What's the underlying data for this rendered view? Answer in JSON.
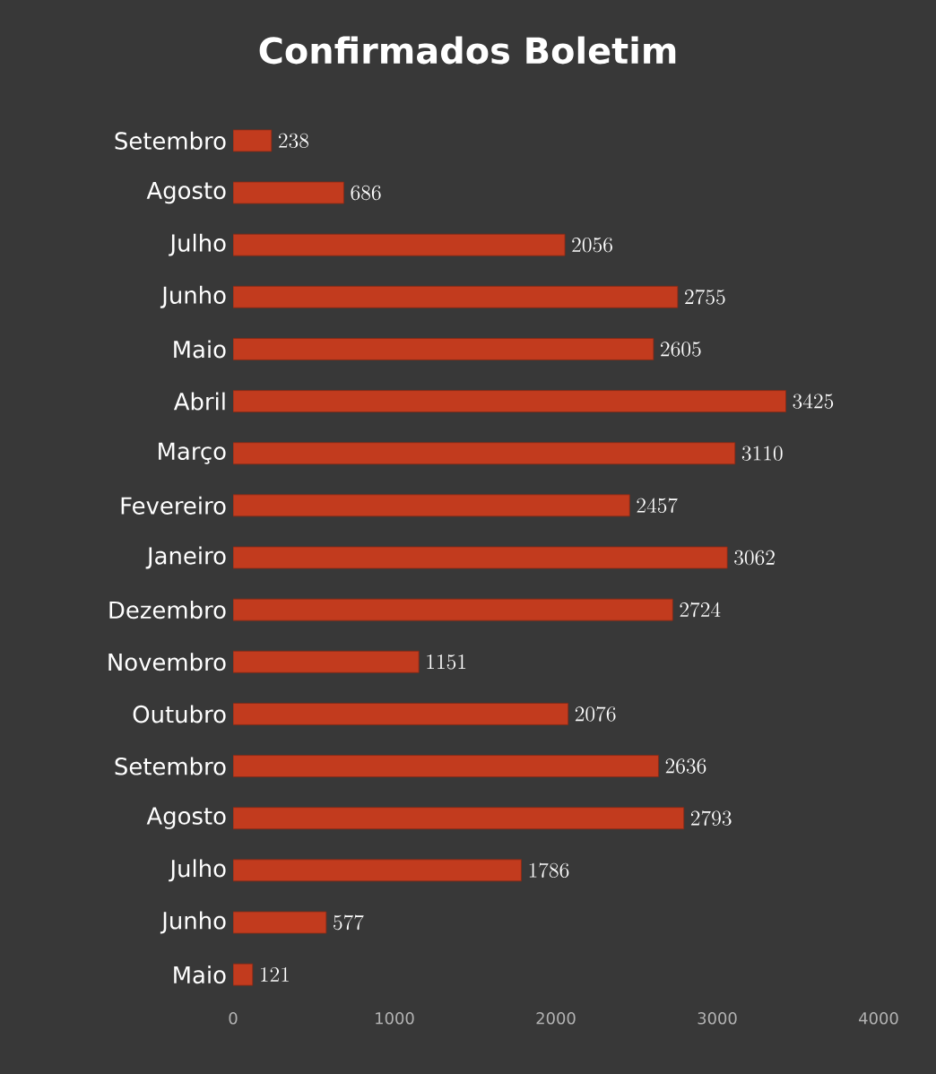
{
  "chart_data": {
    "type": "bar",
    "orientation": "horizontal",
    "title": "Confirmados Boletim",
    "categories": [
      "Setembro",
      "Agosto",
      "Julho",
      "Junho",
      "Maio",
      "Abril",
      "Março",
      "Fevereiro",
      "Janeiro",
      "Dezembro",
      "Novembro",
      "Outubro",
      "Setembro",
      "Agosto",
      "Julho",
      "Junho",
      "Maio"
    ],
    "values": [
      238,
      686,
      2056,
      2755,
      2605,
      3425,
      3110,
      2457,
      3062,
      2724,
      1151,
      2076,
      2636,
      2793,
      1786,
      577,
      121
    ],
    "color": "#c23b1e",
    "xlim": [
      0,
      4000
    ],
    "xticks": [
      0,
      1000,
      2000,
      3000,
      4000
    ],
    "data_labels": true,
    "grid": false
  }
}
